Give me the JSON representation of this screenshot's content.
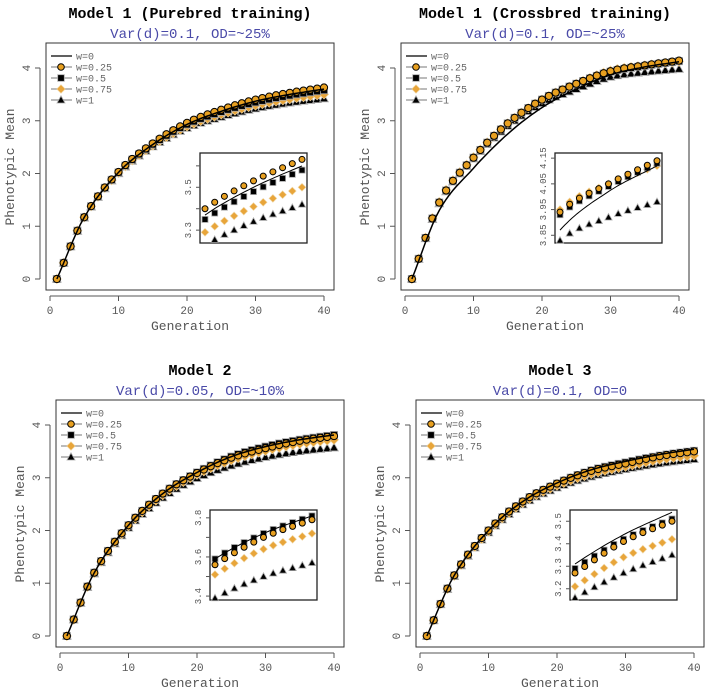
{
  "chart_data": [
    {
      "type": "scatter",
      "title": "Model 1 (Purebred training)",
      "subtitle": "Var(d)=0.1, OD=~25%",
      "xlabel": "Generation",
      "ylabel": "Phenotypic Mean",
      "xlim": [
        0,
        40
      ],
      "ylim": [
        0,
        4
      ],
      "xticks": [
        0,
        10,
        20,
        30,
        40
      ],
      "yticks": [
        0,
        1,
        2,
        3,
        4
      ],
      "key_generations": [
        1,
        5,
        10,
        15,
        20,
        25,
        30,
        35,
        40
      ],
      "series": [
        {
          "name": "w=0",
          "values": [
            0,
            1.17,
            2.02,
            2.55,
            2.93,
            3.18,
            3.37,
            3.5,
            3.6
          ]
        },
        {
          "name": "w=0.25",
          "values": [
            0,
            1.17,
            2.03,
            2.57,
            2.96,
            3.21,
            3.4,
            3.53,
            3.63
          ]
        },
        {
          "name": "w=0.5",
          "values": [
            0,
            1.17,
            2.02,
            2.55,
            2.93,
            3.17,
            3.35,
            3.48,
            3.58
          ]
        },
        {
          "name": "w=0.75",
          "values": [
            0,
            1.17,
            2.01,
            2.53,
            2.89,
            3.12,
            3.29,
            3.41,
            3.5
          ]
        },
        {
          "name": "w=1",
          "values": [
            0,
            1.16,
            2.0,
            2.51,
            2.86,
            3.07,
            3.23,
            3.34,
            3.42
          ]
        }
      ],
      "inset": {
        "xlim": [
          30,
          40
        ],
        "ylim": [
          3.24,
          3.66
        ],
        "ytick_labels": [
          3.3,
          3.5
        ],
        "minor_ticks": [
          3.4,
          3.6
        ]
      },
      "legend": "top-left"
    },
    {
      "type": "scatter",
      "title": "Model 1 (Crossbred training)",
      "subtitle": "Var(d)=0.1, OD=~25%",
      "xlabel": "Generation",
      "ylabel": "Phenotypic Mean",
      "xlim": [
        0,
        40
      ],
      "ylim": [
        0,
        4
      ],
      "xticks": [
        0,
        10,
        20,
        30,
        40
      ],
      "yticks": [
        0,
        1,
        2,
        3,
        4
      ],
      "key_generations": [
        1,
        5,
        10,
        15,
        20,
        25,
        30,
        35,
        40
      ],
      "series": [
        {
          "name": "w=0",
          "values": [
            0,
            1.3,
            2.1,
            2.75,
            3.25,
            3.6,
            3.87,
            4.02,
            4.12
          ]
        },
        {
          "name": "w=0.25",
          "values": [
            0,
            1.45,
            2.3,
            2.95,
            3.4,
            3.7,
            3.94,
            4.05,
            4.14
          ]
        },
        {
          "name": "w=0.5",
          "values": [
            0,
            1.45,
            2.3,
            2.95,
            3.4,
            3.7,
            3.93,
            4.04,
            4.13
          ]
        },
        {
          "name": "w=0.75",
          "values": [
            0,
            1.46,
            2.31,
            2.95,
            3.4,
            3.7,
            3.95,
            4.05,
            4.12
          ]
        },
        {
          "name": "w=1",
          "values": [
            0,
            1.43,
            2.28,
            2.9,
            3.33,
            3.6,
            3.83,
            3.92,
            3.98
          ]
        }
      ],
      "inset": {
        "xlim": [
          30,
          40
        ],
        "ylim": [
          3.82,
          4.17
        ],
        "ytick_labels": [
          3.85,
          3.95,
          4.05,
          4.15
        ],
        "minor_ticks": []
      },
      "legend": "top-left"
    },
    {
      "type": "scatter",
      "title": "Model 2",
      "subtitle": "Var(d)=0.05, OD=~10%",
      "xlabel": "Generation",
      "ylabel": "Phenotypic Mean",
      "xlim": [
        0,
        40
      ],
      "ylim": [
        0,
        4
      ],
      "xticks": [
        0,
        10,
        20,
        30,
        40
      ],
      "yticks": [
        0,
        1,
        2,
        3,
        4
      ],
      "key_generations": [
        1,
        5,
        10,
        15,
        20,
        25,
        30,
        35,
        40
      ],
      "series": [
        {
          "name": "w=0",
          "values": [
            0,
            1.2,
            2.1,
            2.7,
            3.1,
            3.4,
            3.59,
            3.72,
            3.81
          ]
        },
        {
          "name": "w=0.25",
          "values": [
            0,
            1.2,
            2.1,
            2.7,
            3.09,
            3.38,
            3.56,
            3.7,
            3.79
          ]
        },
        {
          "name": "w=0.5",
          "values": [
            0,
            1.2,
            2.1,
            2.7,
            3.1,
            3.4,
            3.59,
            3.72,
            3.81
          ]
        },
        {
          "name": "w=0.75",
          "values": [
            0,
            1.19,
            2.08,
            2.67,
            3.06,
            3.33,
            3.51,
            3.64,
            3.72
          ]
        },
        {
          "name": "w=1",
          "values": [
            0,
            1.18,
            2.05,
            2.62,
            2.99,
            3.23,
            3.39,
            3.5,
            3.57
          ]
        }
      ],
      "inset": {
        "xlim": [
          30,
          40
        ],
        "ylim": [
          3.38,
          3.84
        ],
        "ytick_labels": [
          3.4,
          3.6,
          3.8
        ],
        "minor_ticks": [
          3.5,
          3.7
        ]
      },
      "legend": "top-left"
    },
    {
      "type": "scatter",
      "title": "Model 3",
      "subtitle": "Var(d)=0.1, OD=0",
      "xlabel": "Generation",
      "ylabel": "Phenotypic Mean",
      "xlim": [
        0,
        40
      ],
      "ylim": [
        0,
        4
      ],
      "xticks": [
        0,
        10,
        20,
        30,
        40
      ],
      "yticks": [
        0,
        1,
        2,
        3,
        4
      ],
      "key_generations": [
        1,
        5,
        10,
        15,
        20,
        25,
        30,
        35,
        40
      ],
      "series": [
        {
          "name": "w=0",
          "values": [
            0,
            1.15,
            2.0,
            2.55,
            2.9,
            3.15,
            3.31,
            3.44,
            3.54
          ]
        },
        {
          "name": "w=0.25",
          "values": [
            0,
            1.15,
            2.0,
            2.55,
            2.89,
            3.13,
            3.27,
            3.41,
            3.5
          ]
        },
        {
          "name": "w=0.5",
          "values": [
            0,
            1.15,
            2.0,
            2.55,
            2.89,
            3.14,
            3.29,
            3.42,
            3.51
          ]
        },
        {
          "name": "w=0.75",
          "values": [
            0,
            1.14,
            1.98,
            2.52,
            2.85,
            3.07,
            3.21,
            3.34,
            3.42
          ]
        },
        {
          "name": "w=1",
          "values": [
            0,
            1.13,
            1.96,
            2.49,
            2.81,
            3.02,
            3.16,
            3.27,
            3.35
          ]
        }
      ],
      "inset": {
        "xlim": [
          30,
          40
        ],
        "ylim": [
          3.15,
          3.55
        ],
        "ytick_labels": [
          3.2,
          3.3,
          3.4,
          3.5
        ],
        "minor_ticks": []
      },
      "legend": "top-left"
    }
  ],
  "series_styles": [
    {
      "marker": "line",
      "fill": "#000000"
    },
    {
      "marker": "circle",
      "fill": "#e8a020"
    },
    {
      "marker": "square",
      "fill": "#000000"
    },
    {
      "marker": "diamond",
      "fill": "#e8a53a"
    },
    {
      "marker": "triangle",
      "fill": "#000000"
    }
  ]
}
